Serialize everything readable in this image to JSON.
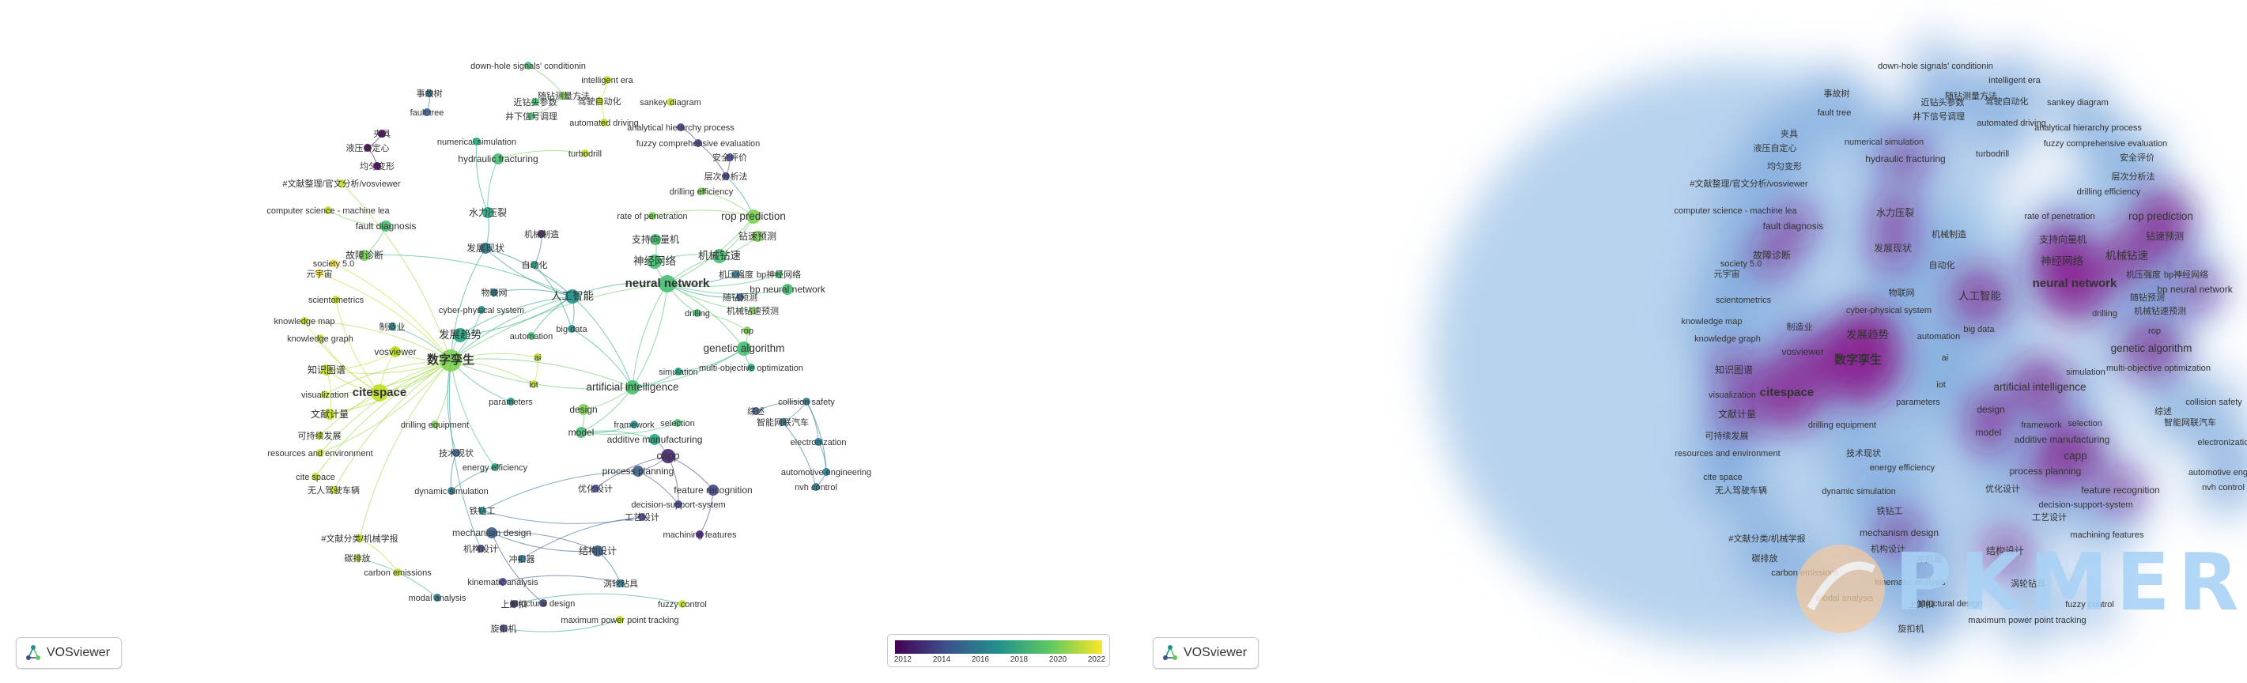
{
  "badges": {
    "left": "VOSviewer",
    "right": "VOSviewer"
  },
  "legend": {
    "ticks": [
      "2012",
      "2014",
      "2016",
      "2018",
      "2020",
      "2022"
    ]
  },
  "watermark": {
    "text": "PKMER"
  },
  "colors": {
    "viridis": [
      "#440154",
      "#3b528b",
      "#21918c",
      "#5ec962",
      "#fde725"
    ],
    "density_peak": "#7a0e7e",
    "density_base": "#8fb7e2"
  },
  "nodes": [
    {
      "label": "down-hole signals' conditionin",
      "year": 2019,
      "w": 1
    },
    {
      "label": "intelligent era",
      "year": 2021,
      "w": 1
    },
    {
      "label": "近钻头参数",
      "year": 2019,
      "w": 1
    },
    {
      "label": "随钻测量方法",
      "year": 2020,
      "w": 1
    },
    {
      "label": "驾驶自动化",
      "year": 2021,
      "w": 1
    },
    {
      "label": "sankey diagram",
      "year": 2021,
      "w": 1
    },
    {
      "label": "井下信号调理",
      "year": 2019,
      "w": 1
    },
    {
      "label": "automated driving",
      "year": 2021,
      "w": 1
    },
    {
      "label": "事故树",
      "year": 2016,
      "w": 1
    },
    {
      "label": "fault tree",
      "year": 2015,
      "w": 1
    },
    {
      "label": "夹具",
      "year": 2012,
      "w": 1
    },
    {
      "label": "液压自定心",
      "year": 2012,
      "w": 1
    },
    {
      "label": "均匀变形",
      "year": 2012,
      "w": 1
    },
    {
      "label": "numerical simulation",
      "year": 2018,
      "w": 1
    },
    {
      "label": "hydraulic fracturing",
      "year": 2019,
      "w": 2
    },
    {
      "label": "turbodrill",
      "year": 2021,
      "w": 1
    },
    {
      "label": "analytical hierarchy process",
      "year": 2014,
      "w": 1
    },
    {
      "label": "fuzzy comprehensive evaluation",
      "year": 2014,
      "w": 1
    },
    {
      "label": "安全评价",
      "year": 2014,
      "w": 1
    },
    {
      "label": "#文献整理/官文分析/vosviewer",
      "year": 2021,
      "w": 1
    },
    {
      "label": "层次分析法",
      "year": 2014,
      "w": 1
    },
    {
      "label": "drilling efficiency",
      "year": 2020,
      "w": 1
    },
    {
      "label": "computer science - machine lea",
      "year": 2021,
      "w": 1
    },
    {
      "label": "水力压裂",
      "year": 2018,
      "w": 2
    },
    {
      "label": "rate of penetration",
      "year": 2020,
      "w": 1
    },
    {
      "label": "rop prediction",
      "year": 2020,
      "w": 3
    },
    {
      "label": "fault diagnosis",
      "year": 2019,
      "w": 2
    },
    {
      "label": "机械制造",
      "year": 2013,
      "w": 1
    },
    {
      "label": "支持向量机",
      "year": 2019,
      "w": 2
    },
    {
      "label": "钻速预测",
      "year": 2020,
      "w": 2
    },
    {
      "label": "故障诊断",
      "year": 2020,
      "w": 2
    },
    {
      "label": "发展现状",
      "year": 2016,
      "w": 2
    },
    {
      "label": "自动化",
      "year": 2018,
      "w": 1
    },
    {
      "label": "神经网络",
      "year": 2019,
      "w": 3
    },
    {
      "label": "机械钻速",
      "year": 2019,
      "w": 3
    },
    {
      "label": "society 5.0",
      "year": 2022,
      "w": 1
    },
    {
      "label": "元宇宙",
      "year": 2022,
      "w": 1
    },
    {
      "label": "机压强度",
      "year": 2016,
      "w": 1
    },
    {
      "label": "bp神经网络",
      "year": 2019,
      "w": 1
    },
    {
      "label": "scientometrics",
      "year": 2021,
      "w": 1
    },
    {
      "label": "物联网",
      "year": 2016,
      "w": 1
    },
    {
      "label": "neural network",
      "year": 2019,
      "w": 4
    },
    {
      "label": "随钻预测",
      "year": 2015,
      "w": 1
    },
    {
      "label": "bp neural network",
      "year": 2019,
      "w": 2
    },
    {
      "label": "人工智能",
      "year": 2017,
      "w": 3
    },
    {
      "label": "knowledge map",
      "year": 2021,
      "w": 1
    },
    {
      "label": "制造业",
      "year": 2017,
      "w": 1
    },
    {
      "label": "cyber-physical system",
      "year": 2017,
      "w": 1
    },
    {
      "label": "drilling",
      "year": 2019,
      "w": 1
    },
    {
      "label": "机械钻速预测",
      "year": 2020,
      "w": 1
    },
    {
      "label": "knowledge graph",
      "year": 2021,
      "w": 1
    },
    {
      "label": "发展趋势",
      "year": 2018,
      "w": 3
    },
    {
      "label": "automation",
      "year": 2019,
      "w": 1
    },
    {
      "label": "big data",
      "year": 2017,
      "w": 1
    },
    {
      "label": "rop",
      "year": 2020,
      "w": 1
    },
    {
      "label": "vosviewer",
      "year": 2021,
      "w": 2
    },
    {
      "label": "数字孪生",
      "year": 2020,
      "w": 5
    },
    {
      "label": "genetic algorithm",
      "year": 2019,
      "w": 3
    },
    {
      "label": "ai",
      "year": 2021,
      "w": 1
    },
    {
      "label": "知识图谱",
      "year": 2021,
      "w": 2
    },
    {
      "label": "simulation",
      "year": 2018,
      "w": 1
    },
    {
      "label": "multi-objective optimization",
      "year": 2018,
      "w": 1
    },
    {
      "label": "iot",
      "year": 2021,
      "w": 1
    },
    {
      "label": "artificial intelligence",
      "year": 2019,
      "w": 3
    },
    {
      "label": "visualization",
      "year": 2021,
      "w": 1
    },
    {
      "label": "citespace",
      "year": 2021,
      "w": 4
    },
    {
      "label": "parameters",
      "year": 2017,
      "w": 1
    },
    {
      "label": "collision safety",
      "year": 2016,
      "w": 1
    },
    {
      "label": "design",
      "year": 2020,
      "w": 2
    },
    {
      "label": "综述",
      "year": 2015,
      "w": 1
    },
    {
      "label": "智能网联汽车",
      "year": 2016,
      "w": 1
    },
    {
      "label": "文献计量",
      "year": 2021,
      "w": 2
    },
    {
      "label": "drilling equipment",
      "year": 2020,
      "w": 1
    },
    {
      "label": "可持续发展",
      "year": 2021,
      "w": 1
    },
    {
      "label": "framework",
      "year": 2017,
      "w": 1
    },
    {
      "label": "selection",
      "year": 2019,
      "w": 1
    },
    {
      "label": "electronization",
      "year": 2016,
      "w": 1
    },
    {
      "label": "model",
      "year": 2019,
      "w": 2
    },
    {
      "label": "additive manufacturing",
      "year": 2018,
      "w": 2
    },
    {
      "label": "技术现状",
      "year": 2015,
      "w": 1
    },
    {
      "label": "resources and environment",
      "year": 2021,
      "w": 1
    },
    {
      "label": "capp",
      "year": 2013,
      "w": 3
    },
    {
      "label": "energy efficiency",
      "year": 2018,
      "w": 1
    },
    {
      "label": "automotive engineering",
      "year": 2016,
      "w": 1
    },
    {
      "label": "cite space",
      "year": 2021,
      "w": 1
    },
    {
      "label": "process planning",
      "year": 2015,
      "w": 2
    },
    {
      "label": "无人驾驶车辆",
      "year": 2021,
      "w": 1
    },
    {
      "label": "优化设计",
      "year": 2014,
      "w": 1
    },
    {
      "label": "feature recognition",
      "year": 2014,
      "w": 2
    },
    {
      "label": "nvh control",
      "year": 2016,
      "w": 1
    },
    {
      "label": "dynamic simulation",
      "year": 2016,
      "w": 1
    },
    {
      "label": "decision-support-system",
      "year": 2014,
      "w": 1
    },
    {
      "label": "铁钻工",
      "year": 2017,
      "w": 1
    },
    {
      "label": "工艺设计",
      "year": 2014,
      "w": 1
    },
    {
      "label": "machining features",
      "year": 2013,
      "w": 1
    },
    {
      "label": "#文献分类/机械学报",
      "year": 2021,
      "w": 1
    },
    {
      "label": "mechanism design",
      "year": 2015,
      "w": 2
    },
    {
      "label": "机构设计",
      "year": 2014,
      "w": 1
    },
    {
      "label": "冲扣器",
      "year": 2016,
      "w": 1
    },
    {
      "label": "结构设计",
      "year": 2015,
      "w": 2
    },
    {
      "label": "碳排放",
      "year": 2021,
      "w": 1
    },
    {
      "label": "carbon emissions",
      "year": 2021,
      "w": 1
    },
    {
      "label": "kinematic analysis",
      "year": 2014,
      "w": 1
    },
    {
      "label": "涡轮钻具",
      "year": 2016,
      "w": 1
    },
    {
      "label": "modal analysis",
      "year": 2016,
      "w": 1
    },
    {
      "label": "上卸扣",
      "year": 2014,
      "w": 1
    },
    {
      "label": "structural design",
      "year": 2014,
      "w": 1
    },
    {
      "label": "fuzzy control",
      "year": 2021,
      "w": 1
    },
    {
      "label": "maximum power point tracking",
      "year": 2021,
      "w": 1
    },
    {
      "label": "旋扣机",
      "year": 2014,
      "w": 1
    }
  ]
}
